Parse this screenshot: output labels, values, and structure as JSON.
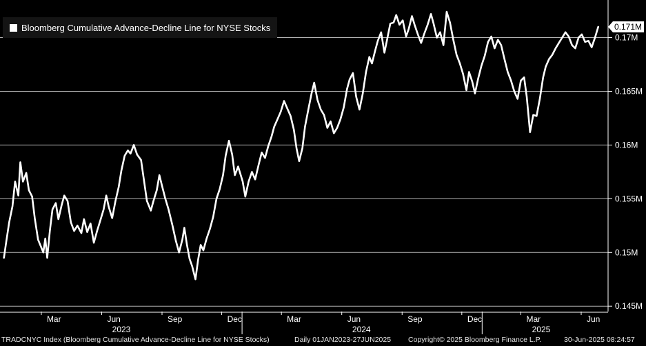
{
  "chart_data": {
    "type": "line",
    "title": "Bloomberg Cumulative Advance-Decline Line for NYSE Stocks",
    "series": [
      {
        "name": "Bloomberg Cumulative Advance-Decline Line for NYSE Stocks",
        "color": "#ffffff",
        "points": [
          [
            "2023-01-03",
            0.1495
          ],
          [
            "2023-01-06",
            0.1508
          ],
          [
            "2023-01-11",
            0.1528
          ],
          [
            "2023-01-16",
            0.1543
          ],
          [
            "2023-01-20",
            0.1566
          ],
          [
            "2023-01-25",
            0.1553
          ],
          [
            "2023-01-28",
            0.1584
          ],
          [
            "2023-02-01",
            0.1566
          ],
          [
            "2023-02-06",
            0.1574
          ],
          [
            "2023-02-10",
            0.1558
          ],
          [
            "2023-02-15",
            0.1552
          ],
          [
            "2023-02-19",
            0.1532
          ],
          [
            "2023-02-24",
            0.1512
          ],
          [
            "2023-02-28",
            0.1506
          ],
          [
            "2023-03-04",
            0.15
          ],
          [
            "2023-03-07",
            0.1513
          ],
          [
            "2023-03-10",
            0.1495
          ],
          [
            "2023-03-14",
            0.152
          ],
          [
            "2023-03-18",
            0.154
          ],
          [
            "2023-03-23",
            0.1546
          ],
          [
            "2023-03-27",
            0.1531
          ],
          [
            "2023-04-01",
            0.1544
          ],
          [
            "2023-04-05",
            0.1553
          ],
          [
            "2023-04-10",
            0.1548
          ],
          [
            "2023-04-15",
            0.1528
          ],
          [
            "2023-04-20",
            0.152
          ],
          [
            "2023-04-25",
            0.1525
          ],
          [
            "2023-05-01",
            0.1518
          ],
          [
            "2023-05-05",
            0.1531
          ],
          [
            "2023-05-10",
            0.1519
          ],
          [
            "2023-05-15",
            0.1527
          ],
          [
            "2023-05-20",
            0.1509
          ],
          [
            "2023-05-25",
            0.152
          ],
          [
            "2023-05-30",
            0.153
          ],
          [
            "2023-06-04",
            0.154
          ],
          [
            "2023-06-08",
            0.1553
          ],
          [
            "2023-06-12",
            0.1542
          ],
          [
            "2023-06-17",
            0.1532
          ],
          [
            "2023-06-22",
            0.1548
          ],
          [
            "2023-06-27",
            0.1561
          ],
          [
            "2023-07-01",
            0.1576
          ],
          [
            "2023-07-06",
            0.159
          ],
          [
            "2023-07-11",
            0.1595
          ],
          [
            "2023-07-15",
            0.1592
          ],
          [
            "2023-07-20",
            0.16
          ],
          [
            "2023-07-25",
            0.1591
          ],
          [
            "2023-07-31",
            0.1586
          ],
          [
            "2023-08-04",
            0.1569
          ],
          [
            "2023-08-09",
            0.1548
          ],
          [
            "2023-08-15",
            0.1539
          ],
          [
            "2023-08-19",
            0.1548
          ],
          [
            "2023-08-24",
            0.1558
          ],
          [
            "2023-08-28",
            0.1572
          ],
          [
            "2023-09-01",
            0.1562
          ],
          [
            "2023-09-06",
            0.155
          ],
          [
            "2023-09-11",
            0.154
          ],
          [
            "2023-09-17",
            0.1525
          ],
          [
            "2023-09-22",
            0.1511
          ],
          [
            "2023-09-27",
            0.15
          ],
          [
            "2023-10-02",
            0.1512
          ],
          [
            "2023-10-05",
            0.1523
          ],
          [
            "2023-10-09",
            0.1507
          ],
          [
            "2023-10-13",
            0.1494
          ],
          [
            "2023-10-17",
            0.1487
          ],
          [
            "2023-10-22",
            0.1475
          ],
          [
            "2023-10-26",
            0.1493
          ],
          [
            "2023-10-30",
            0.1507
          ],
          [
            "2023-11-03",
            0.1502
          ],
          [
            "2023-11-08",
            0.1513
          ],
          [
            "2023-11-13",
            0.1522
          ],
          [
            "2023-11-18",
            0.1533
          ],
          [
            "2023-11-23",
            0.155
          ],
          [
            "2023-11-28",
            0.1559
          ],
          [
            "2023-12-03",
            0.1572
          ],
          [
            "2023-12-07",
            0.159
          ],
          [
            "2023-12-12",
            0.1604
          ],
          [
            "2023-12-17",
            0.1591
          ],
          [
            "2023-12-21",
            0.1572
          ],
          [
            "2023-12-26",
            0.158
          ],
          [
            "2024-01-02",
            0.1566
          ],
          [
            "2024-01-06",
            0.1552
          ],
          [
            "2024-01-11",
            0.1566
          ],
          [
            "2024-01-16",
            0.1575
          ],
          [
            "2024-01-21",
            0.1568
          ],
          [
            "2024-01-26",
            0.1581
          ],
          [
            "2024-01-31",
            0.1593
          ],
          [
            "2024-02-05",
            0.1588
          ],
          [
            "2024-02-10",
            0.1599
          ],
          [
            "2024-02-15",
            0.1608
          ],
          [
            "2024-02-19",
            0.1617
          ],
          [
            "2024-02-24",
            0.1624
          ],
          [
            "2024-02-29",
            0.1631
          ],
          [
            "2024-03-05",
            0.1641
          ],
          [
            "2024-03-10",
            0.1634
          ],
          [
            "2024-03-15",
            0.1627
          ],
          [
            "2024-03-20",
            0.1614
          ],
          [
            "2024-03-24",
            0.1597
          ],
          [
            "2024-03-28",
            0.1585
          ],
          [
            "2024-04-02",
            0.1597
          ],
          [
            "2024-04-06",
            0.1617
          ],
          [
            "2024-04-11",
            0.1633
          ],
          [
            "2024-04-16",
            0.1648
          ],
          [
            "2024-04-20",
            0.1658
          ],
          [
            "2024-04-25",
            0.1642
          ],
          [
            "2024-04-30",
            0.1633
          ],
          [
            "2024-05-05",
            0.1628
          ],
          [
            "2024-05-10",
            0.1616
          ],
          [
            "2024-05-15",
            0.1622
          ],
          [
            "2024-05-20",
            0.1611
          ],
          [
            "2024-05-25",
            0.1616
          ],
          [
            "2024-05-30",
            0.1624
          ],
          [
            "2024-06-04",
            0.1635
          ],
          [
            "2024-06-09",
            0.1652
          ],
          [
            "2024-06-13",
            0.1661
          ],
          [
            "2024-06-18",
            0.1667
          ],
          [
            "2024-06-23",
            0.1645
          ],
          [
            "2024-06-28",
            0.1633
          ],
          [
            "2024-07-03",
            0.1648
          ],
          [
            "2024-07-08",
            0.1668
          ],
          [
            "2024-07-13",
            0.1682
          ],
          [
            "2024-07-17",
            0.1676
          ],
          [
            "2024-07-22",
            0.1688
          ],
          [
            "2024-07-26",
            0.1697
          ],
          [
            "2024-07-31",
            0.1705
          ],
          [
            "2024-08-05",
            0.1686
          ],
          [
            "2024-08-09",
            0.1698
          ],
          [
            "2024-08-14",
            0.1713
          ],
          [
            "2024-08-19",
            0.1714
          ],
          [
            "2024-08-23",
            0.1721
          ],
          [
            "2024-08-28",
            0.1712
          ],
          [
            "2024-09-02",
            0.1716
          ],
          [
            "2024-09-07",
            0.1701
          ],
          [
            "2024-09-11",
            0.1708
          ],
          [
            "2024-09-16",
            0.172
          ],
          [
            "2024-09-20",
            0.1712
          ],
          [
            "2024-09-25",
            0.1703
          ],
          [
            "2024-09-30",
            0.1695
          ],
          [
            "2024-10-05",
            0.1704
          ],
          [
            "2024-10-10",
            0.1712
          ],
          [
            "2024-10-15",
            0.1722
          ],
          [
            "2024-10-19",
            0.1713
          ],
          [
            "2024-10-24",
            0.17
          ],
          [
            "2024-10-29",
            0.1705
          ],
          [
            "2024-11-03",
            0.1693
          ],
          [
            "2024-11-08",
            0.1724
          ],
          [
            "2024-11-13",
            0.1714
          ],
          [
            "2024-11-18",
            0.1698
          ],
          [
            "2024-11-23",
            0.1684
          ],
          [
            "2024-11-28",
            0.1676
          ],
          [
            "2024-12-03",
            0.1666
          ],
          [
            "2024-12-08",
            0.1651
          ],
          [
            "2024-12-12",
            0.1668
          ],
          [
            "2024-12-17",
            0.1659
          ],
          [
            "2024-12-21",
            0.1648
          ],
          [
            "2024-12-26",
            0.1662
          ],
          [
            "2024-12-31",
            0.1674
          ],
          [
            "2025-01-05",
            0.1683
          ],
          [
            "2025-01-10",
            0.1696
          ],
          [
            "2025-01-15",
            0.1701
          ],
          [
            "2025-01-20",
            0.169
          ],
          [
            "2025-01-25",
            0.1698
          ],
          [
            "2025-01-30",
            0.1693
          ],
          [
            "2025-02-04",
            0.168
          ],
          [
            "2025-02-09",
            0.1668
          ],
          [
            "2025-02-14",
            0.166
          ],
          [
            "2025-02-19",
            0.165
          ],
          [
            "2025-02-24",
            0.1643
          ],
          [
            "2025-03-01",
            0.166
          ],
          [
            "2025-03-06",
            0.1663
          ],
          [
            "2025-03-10",
            0.1645
          ],
          [
            "2025-03-15",
            0.1612
          ],
          [
            "2025-03-20",
            0.1628
          ],
          [
            "2025-03-25",
            0.1627
          ],
          [
            "2025-03-30",
            0.1643
          ],
          [
            "2025-04-04",
            0.1663
          ],
          [
            "2025-04-08",
            0.1673
          ],
          [
            "2025-04-13",
            0.168
          ],
          [
            "2025-04-18",
            0.1684
          ],
          [
            "2025-04-23",
            0.169
          ],
          [
            "2025-04-28",
            0.1695
          ],
          [
            "2025-05-03",
            0.17
          ],
          [
            "2025-05-08",
            0.1705
          ],
          [
            "2025-05-13",
            0.1701
          ],
          [
            "2025-05-18",
            0.1693
          ],
          [
            "2025-05-23",
            0.169
          ],
          [
            "2025-05-28",
            0.17
          ],
          [
            "2025-06-02",
            0.1703
          ],
          [
            "2025-06-07",
            0.1696
          ],
          [
            "2025-06-12",
            0.1697
          ],
          [
            "2025-06-17",
            0.1691
          ],
          [
            "2025-06-22",
            0.17
          ],
          [
            "2025-06-27",
            0.171
          ]
        ]
      }
    ],
    "x_start": "2022-12-28",
    "x_end": "2025-07-12",
    "ylim": [
      0.1445,
      0.1735
    ],
    "y_ticks": [
      0.145,
      0.15,
      0.155,
      0.16,
      0.165,
      0.17
    ],
    "y_tick_labels": [
      "0.145M",
      "0.15M",
      "0.155M",
      "0.16M",
      "0.165M",
      "0.17M"
    ],
    "y_axis_side": "right",
    "grid": true,
    "last_value": 0.171,
    "last_value_label": "0.171M",
    "x_month_ticks": [
      {
        "date": "2023-03-01",
        "label": "Mar"
      },
      {
        "date": "2023-06-01",
        "label": "Jun"
      },
      {
        "date": "2023-09-01",
        "label": "Sep"
      },
      {
        "date": "2023-12-01",
        "label": "Dec"
      },
      {
        "date": "2024-03-01",
        "label": "Mar"
      },
      {
        "date": "2024-06-01",
        "label": "Jun"
      },
      {
        "date": "2024-09-01",
        "label": "Sep"
      },
      {
        "date": "2024-12-01",
        "label": "Dec"
      },
      {
        "date": "2025-03-01",
        "label": "Mar"
      },
      {
        "date": "2025-06-01",
        "label": "Jun"
      }
    ],
    "x_year_ticks": [
      {
        "date": "2023-07-01",
        "label": "2023"
      },
      {
        "date": "2024-07-01",
        "label": "2024"
      },
      {
        "date": "2025-04-01",
        "label": "2025"
      }
    ],
    "x_year_dividers": [
      "2024-01-01",
      "2025-01-01"
    ],
    "legend_position": "top-left"
  },
  "footer": {
    "ticker": "TRADCNYC Index (Bloomberg Cumulative Advance-Decline Line for NYSE Stocks)",
    "range": "Daily 01JAN2023-27JUN2025",
    "copyright": "Copyright© 2025 Bloomberg Finance L.P.",
    "timestamp": "30-Jun-2025 08:24:57"
  },
  "colors": {
    "background": "#000000",
    "line": "#ffffff",
    "grid": "#b4b4b4",
    "legend_bg": "#141414"
  }
}
